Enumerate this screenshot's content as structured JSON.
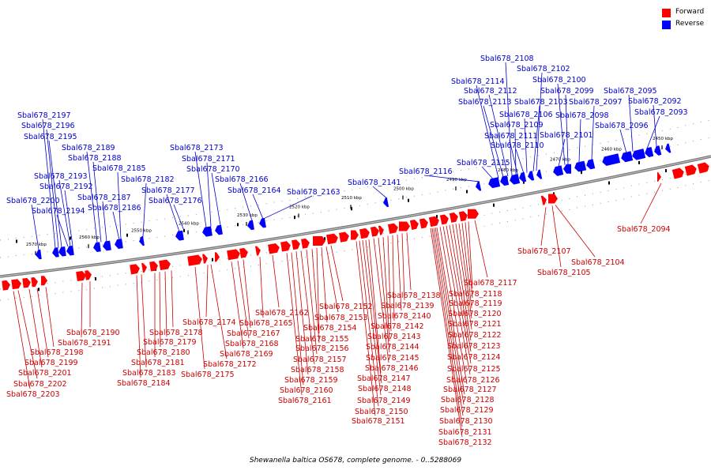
{
  "caption": "Shewanella baltica OS678, complete genome. - 0..5288069",
  "legend": {
    "forward_label": "Forward",
    "reverse_label": "Reverse",
    "forward_color": "#ff0000",
    "reverse_color": "#0000ff"
  },
  "colors": {
    "forward": "#ff0000",
    "reverse": "#0000ff",
    "forward_label": "#cc0000",
    "reverse_label": "#0000cc",
    "axis": "#888888"
  },
  "scale_ticks": [
    "2570 kbp",
    "2560 kbp",
    "2550 kbp",
    "2540 kbp",
    "2530 kbp",
    "2520 kbp",
    "2510 kbp",
    "2500 kbp",
    "2490 kbp",
    "2480 kbp",
    "2470 kbp",
    "2460 kbp",
    "2450 kbp"
  ],
  "reverse_genes": [
    "Sbal678_2200",
    "Sbal678_2197",
    "Sbal678_2196",
    "Sbal678_2195",
    "Sbal678_2194",
    "Sbal678_2193",
    "Sbal678_2192",
    "Sbal678_2189",
    "Sbal678_2188",
    "Sbal678_2187",
    "Sbal678_2186",
    "Sbal678_2185",
    "Sbal678_2182",
    "Sbal678_2177",
    "Sbal678_2176",
    "Sbal678_2173",
    "Sbal678_2171",
    "Sbal678_2170",
    "Sbal678_2166",
    "Sbal678_2164",
    "Sbal678_2163",
    "Sbal678_2141",
    "Sbal678_2116",
    "Sbal678_2115",
    "Sbal678_2114",
    "Sbal678_2113",
    "Sbal678_2112",
    "Sbal678_2111",
    "Sbal678_2110",
    "Sbal678_2109",
    "Sbal678_2108",
    "Sbal678_2106",
    "Sbal678_2103",
    "Sbal678_2102",
    "Sbal678_2101",
    "Sbal678_2100",
    "Sbal678_2099",
    "Sbal678_2098",
    "Sbal678_2097",
    "Sbal678_2096",
    "Sbal678_2095",
    "Sbal678_2093",
    "Sbal678_2092"
  ],
  "forward_genes": [
    "Sbal678_2203",
    "Sbal678_2202",
    "Sbal678_2201",
    "Sbal678_2199",
    "Sbal678_2198",
    "Sbal678_2191",
    "Sbal678_2190",
    "Sbal678_2184",
    "Sbal678_2183",
    "Sbal678_2181",
    "Sbal678_2180",
    "Sbal678_2179",
    "Sbal678_2178",
    "Sbal678_2175",
    "Sbal678_2174",
    "Sbal678_2172",
    "Sbal678_2169",
    "Sbal678_2168",
    "Sbal678_2167",
    "Sbal678_2165",
    "Sbal678_2162",
    "Sbal678_2161",
    "Sbal678_2160",
    "Sbal678_2159",
    "Sbal678_2158",
    "Sbal678_2157",
    "Sbal678_2156",
    "Sbal678_2155",
    "Sbal678_2154",
    "Sbal678_2153",
    "Sbal678_2152",
    "Sbal678_2151",
    "Sbal678_2150",
    "Sbal678_2149",
    "Sbal678_2148",
    "Sbal678_2147",
    "Sbal678_2146",
    "Sbal678_2145",
    "Sbal678_2144",
    "Sbal678_2143",
    "Sbal678_2142",
    "Sbal678_2140",
    "Sbal678_2139",
    "Sbal678_2138",
    "Sbal678_2117",
    "Sbal678_2118",
    "Sbal678_2119",
    "Sbal678_2120",
    "Sbal678_2121",
    "Sbal678_2122",
    "Sbal678_2123",
    "Sbal678_2124",
    "Sbal678_2125",
    "Sbal678_2126",
    "Sbal678_2127",
    "Sbal678_2128",
    "Sbal678_2129",
    "Sbal678_2130",
    "Sbal678_2131",
    "Sbal678_2132",
    "Sbal678_2107",
    "Sbal678_2105",
    "Sbal678_2104",
    "Sbal678_2094"
  ]
}
